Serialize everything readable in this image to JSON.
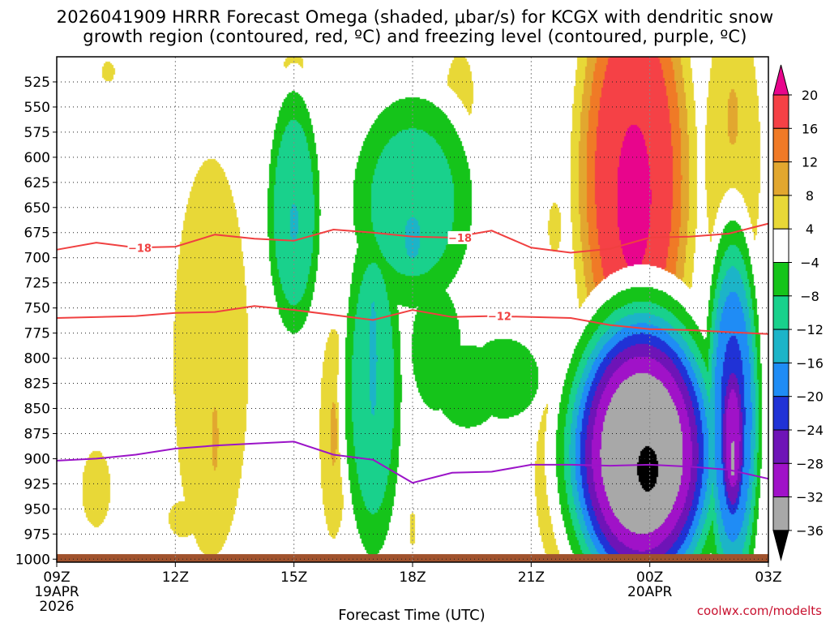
{
  "chart_data": {
    "type": "heatmap",
    "title_line1": "2026041909 HRRR Forecast Omega (shaded, μbar/s) for KCGX with dendritic snow",
    "title_line2": "growth region (contoured, red, ºC) and freezing level (contoured, purple, ºC)",
    "xlabel": "Forecast Time (UTC)",
    "x_ticks": [
      {
        "hour": 0,
        "label": "09Z",
        "sub1": "19APR",
        "sub2": "2026"
      },
      {
        "hour": 3,
        "label": "12Z"
      },
      {
        "hour": 6,
        "label": "15Z"
      },
      {
        "hour": 9,
        "label": "18Z"
      },
      {
        "hour": 12,
        "label": "21Z"
      },
      {
        "hour": 15,
        "label": "00Z",
        "sub1": "20APR"
      },
      {
        "hour": 18,
        "label": "03Z"
      }
    ],
    "xlim_hours": [
      0,
      18
    ],
    "ylim_hpa": [
      1003,
      500
    ],
    "y_ticks": [
      525,
      550,
      575,
      600,
      625,
      650,
      675,
      700,
      725,
      750,
      775,
      800,
      825,
      850,
      875,
      900,
      925,
      950,
      975,
      1000
    ],
    "colorbar": {
      "labels": [
        "20",
        "16",
        "12",
        "8",
        "4",
        "−4",
        "−8",
        "−12",
        "−16",
        "−20",
        "−24",
        "−28",
        "−32",
        "−36"
      ],
      "bands": [
        {
          "range": [
            20,
            99
          ],
          "color": "#e8058c"
        },
        {
          "range": [
            16,
            20
          ],
          "color": "#f54146"
        },
        {
          "range": [
            12,
            16
          ],
          "color": "#f07a26"
        },
        {
          "range": [
            8,
            12
          ],
          "color": "#e2a72f"
        },
        {
          "range": [
            4,
            8
          ],
          "color": "#e8d837"
        },
        {
          "range": [
            -4,
            4
          ],
          "color": "#ffffff"
        },
        {
          "range": [
            -8,
            -4
          ],
          "color": "#15c41a"
        },
        {
          "range": [
            -12,
            -8
          ],
          "color": "#19d18c"
        },
        {
          "range": [
            -16,
            -12
          ],
          "color": "#1cb4c8"
        },
        {
          "range": [
            -20,
            -16
          ],
          "color": "#1f8cf5"
        },
        {
          "range": [
            -24,
            -20
          ],
          "color": "#2032d6"
        },
        {
          "range": [
            -28,
            -24
          ],
          "color": "#6e14b7"
        },
        {
          "range": [
            -32,
            -28
          ],
          "color": "#a012c8"
        },
        {
          "range": [
            -36,
            -32
          ],
          "color": "#a8a8a8"
        },
        {
          "range": [
            -99,
            -36
          ],
          "color": "#000000"
        }
      ]
    },
    "omega_blobs": [
      {
        "x": 1.0,
        "p": 930,
        "rx": 0.38,
        "rp": 40,
        "peak": 6
      },
      {
        "x": 1.3,
        "p": 515,
        "rx": 0.2,
        "rp": 12,
        "peak": 5
      },
      {
        "x": 3.9,
        "p": 800,
        "rx": 0.95,
        "rp": 200,
        "peak": 6.5
      },
      {
        "x": 3.2,
        "p": 960,
        "rx": 0.45,
        "rp": 22,
        "peak": 5
      },
      {
        "x": 4.0,
        "p": 880,
        "rx": 0.12,
        "rp": 45,
        "peak": 9
      },
      {
        "x": 6.0,
        "p": 507,
        "rx": 0.3,
        "rp": 12,
        "peak": 5
      },
      {
        "x": 6.0,
        "p": 655,
        "rx": 0.55,
        "rp": 100,
        "peak": -11.5
      },
      {
        "x": 6.0,
        "p": 665,
        "rx": 0.15,
        "rp": 25,
        "peak": -14
      },
      {
        "x": 7.0,
        "p": 875,
        "rx": 0.35,
        "rp": 105,
        "peak": 6.5
      },
      {
        "x": 7.0,
        "p": 875,
        "rx": 0.12,
        "rp": 45,
        "peak": 9
      },
      {
        "x": 9.0,
        "p": 645,
        "rx": 1.3,
        "rp": 90,
        "peak": -10
      },
      {
        "x": 9.0,
        "p": 680,
        "rx": 0.28,
        "rp": 30,
        "peak": -13.5
      },
      {
        "x": 8.0,
        "p": 830,
        "rx": 0.6,
        "rp": 140,
        "peak": -11
      },
      {
        "x": 8.0,
        "p": 800,
        "rx": 0.12,
        "rp": 70,
        "peak": -15
      },
      {
        "x": 9.6,
        "p": 790,
        "rx": 0.6,
        "rp": 60,
        "peak": -7
      },
      {
        "x": 10.4,
        "p": 828,
        "rx": 0.8,
        "rp": 40,
        "peak": -7
      },
      {
        "x": 11.3,
        "p": 820,
        "rx": 0.9,
        "rp": 40,
        "peak": -6.5
      },
      {
        "x": 9.0,
        "p": 970,
        "rx": 0.1,
        "rp": 20,
        "peak": 5
      },
      {
        "x": 10.2,
        "p": 535,
        "rx": 0.35,
        "rp": 40,
        "peak": 6
      },
      {
        "x": 12.7,
        "p": 920,
        "rx": 0.6,
        "rp": 90,
        "peak": 6.5
      },
      {
        "x": 12.7,
        "p": 900,
        "rx": 0.12,
        "rp": 40,
        "peak": 9
      },
      {
        "x": 12.6,
        "p": 670,
        "rx": 0.2,
        "rp": 30,
        "peak": 5
      },
      {
        "x": 14.6,
        "p": 620,
        "rx": 1.2,
        "rp": 190,
        "peak": 20
      },
      {
        "x": 14.6,
        "p": 640,
        "rx": 0.65,
        "rp": 110,
        "peak": 22
      },
      {
        "x": 14.4,
        "p": 625,
        "rx": 0.15,
        "rp": 25,
        "peak": 26
      },
      {
        "x": 14.8,
        "p": 895,
        "rx": 1.5,
        "rp": 115,
        "peak": -36
      },
      {
        "x": 14.95,
        "p": 910,
        "rx": 0.35,
        "rp": 30,
        "peak": -42
      },
      {
        "x": 16.1,
        "p": 878,
        "rx": 0.25,
        "rp": 95,
        "peak": 7
      },
      {
        "x": 16.1,
        "p": 878,
        "rx": 0.09,
        "rp": 50,
        "peak": 12
      },
      {
        "x": 17.1,
        "p": 745,
        "rx": 0.35,
        "rp": 38,
        "peak": -9
      },
      {
        "x": 17.1,
        "p": 858,
        "rx": 0.55,
        "rp": 145,
        "peak": -21
      },
      {
        "x": 17.1,
        "p": 880,
        "rx": 0.3,
        "rp": 80,
        "peak": -30
      },
      {
        "x": 17.1,
        "p": 900,
        "rx": 0.1,
        "rp": 30,
        "peak": -34
      },
      {
        "x": 17.1,
        "p": 600,
        "rx": 0.7,
        "rp": 150,
        "peak": 6.5
      },
      {
        "x": 17.1,
        "p": 560,
        "rx": 0.2,
        "rp": 40,
        "peak": 9
      }
    ],
    "series": [
      {
        "label": "−18",
        "color": "#f04040",
        "points": [
          [
            0,
            692
          ],
          [
            1,
            685
          ],
          [
            2,
            690
          ],
          [
            3,
            689
          ],
          [
            4,
            677
          ],
          [
            5,
            681
          ],
          [
            6,
            683
          ],
          [
            7,
            672
          ],
          [
            8,
            675
          ],
          [
            9,
            679
          ],
          [
            10,
            680
          ],
          [
            11,
            673
          ],
          [
            12,
            690
          ],
          [
            13,
            695
          ],
          [
            14,
            691
          ],
          [
            15,
            680
          ],
          [
            16,
            679
          ],
          [
            17,
            676
          ],
          [
            18,
            666
          ]
        ],
        "label_at": [
          [
            2.1,
            690
          ],
          [
            10.2,
            680
          ]
        ]
      },
      {
        "label": "−12",
        "color": "#f04040",
        "points": [
          [
            0,
            760
          ],
          [
            2,
            758
          ],
          [
            3,
            755
          ],
          [
            4,
            754
          ],
          [
            5,
            748
          ],
          [
            6,
            752
          ],
          [
            7,
            757
          ],
          [
            8,
            762
          ],
          [
            9,
            752
          ],
          [
            10,
            759
          ],
          [
            11,
            758
          ],
          [
            12,
            759
          ],
          [
            13,
            760
          ],
          [
            14,
            767
          ],
          [
            15,
            771
          ],
          [
            16,
            772
          ],
          [
            17,
            774
          ],
          [
            18,
            776
          ]
        ],
        "label_at": [
          [
            11.2,
            758
          ]
        ]
      },
      {
        "label": "",
        "color": "#9b14c8",
        "points": [
          [
            0,
            902
          ],
          [
            1,
            900
          ],
          [
            2,
            896
          ],
          [
            3,
            890
          ],
          [
            4,
            887
          ],
          [
            5,
            885
          ],
          [
            6,
            883
          ],
          [
            7,
            896
          ],
          [
            8,
            901
          ],
          [
            9,
            924
          ],
          [
            10,
            914
          ],
          [
            11,
            913
          ],
          [
            12,
            906
          ],
          [
            13,
            906
          ],
          [
            14,
            907
          ],
          [
            15,
            906
          ],
          [
            16,
            908
          ],
          [
            17,
            911
          ],
          [
            18,
            920
          ]
        ],
        "label_at": []
      }
    ],
    "terrain": {
      "color": "#a0522d",
      "top_hpa": 995
    }
  },
  "credit": "coolwx.com/modelts"
}
